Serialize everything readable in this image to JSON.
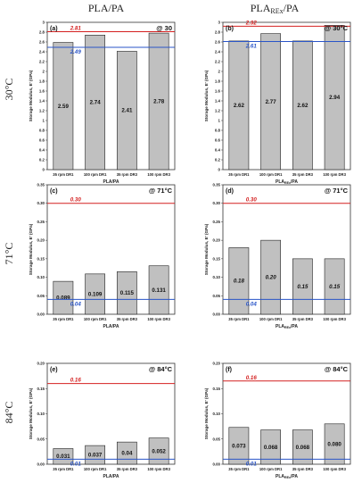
{
  "headers": {
    "columns": [
      "PLA/PA",
      "PLA_REx/PA"
    ],
    "rows": [
      "30°C",
      "71°C",
      "84°C"
    ]
  },
  "chart_data": [
    {
      "type": "bar",
      "panel": "(a)",
      "temperature": "@ 30",
      "categories": [
        "35 rpm DR1",
        "100 rpm DR1",
        "35 rpm DR3",
        "100 rpm DR3"
      ],
      "values": [
        2.59,
        2.74,
        2.41,
        2.78
      ],
      "value_labels": [
        "2.59",
        "2.74",
        "2.41",
        "2.78"
      ],
      "ref_lines": [
        {
          "value": 2.81,
          "label": "2.81",
          "color": "#d42020"
        },
        {
          "value": 2.49,
          "label": "2.49",
          "color": "#2a55c8"
        }
      ],
      "ylim": [
        0,
        3.0
      ],
      "yticks": [
        "0",
        "0.2",
        "0.4",
        "0.6",
        "0.8",
        "1",
        "1.2",
        "1.4",
        "1.6",
        "1.8",
        "2",
        "2.2",
        "2.4",
        "2.6",
        "2.8",
        "3"
      ],
      "xlabel": "PLA/PA",
      "ylabel": "Storage Modulus, E' (GPa)",
      "value_style": "normal"
    },
    {
      "type": "bar",
      "panel": "(b)",
      "temperature": "@ 30°C",
      "categories": [
        "35 rpm DR1",
        "100 rpm DR1",
        "35 rpm DR3",
        "100 rpm DR3"
      ],
      "values": [
        2.62,
        2.77,
        2.62,
        2.94
      ],
      "value_labels": [
        "2.62",
        "2.77",
        "2.62",
        "2.94"
      ],
      "ref_lines": [
        {
          "value": 2.92,
          "label": "2.92",
          "color": "#d42020"
        },
        {
          "value": 2.61,
          "label": "2.61",
          "color": "#2a55c8"
        }
      ],
      "ylim": [
        0,
        3.0
      ],
      "yticks": [
        "0",
        "0.2",
        "0.4",
        "0.6",
        "0.8",
        "1",
        "1.2",
        "1.4",
        "1.6",
        "1.8",
        "2",
        "2.2",
        "2.4",
        "2.6",
        "2.8",
        "3"
      ],
      "xlabel": "PLAREx/PA",
      "ylabel": "Storage Modulus, E' (GPa)",
      "value_style": "normal"
    },
    {
      "type": "bar",
      "panel": "(c)",
      "temperature": "@ 71°C",
      "categories": [
        "35 rpm DR1",
        "100 rpm DR1",
        "35 rpm DR3",
        "100 rpm DR3"
      ],
      "values": [
        0.089,
        0.109,
        0.115,
        0.131
      ],
      "value_labels": [
        "0.089",
        "0.109",
        "0.115",
        "0.131"
      ],
      "ref_lines": [
        {
          "value": 0.3,
          "label": "0.30",
          "color": "#d42020"
        },
        {
          "value": 0.04,
          "label": "0.04",
          "color": "#2a55c8"
        }
      ],
      "ylim": [
        0,
        0.35
      ],
      "yticks": [
        "0.00",
        "0.05",
        "0.10",
        "0.15",
        "0.20",
        "0.25",
        "0.30",
        "0.35"
      ],
      "xlabel": "PLA/PA",
      "ylabel": "Storage Modulus, E' (GPa)",
      "value_style": "normal"
    },
    {
      "type": "bar",
      "panel": "(d)",
      "temperature": "@ 71°C",
      "categories": [
        "35 rpm DR1",
        "100 rpm DR1",
        "35 rpm DR3",
        "100 rpm DR3"
      ],
      "values": [
        0.18,
        0.2,
        0.15,
        0.15
      ],
      "value_labels": [
        "0.18",
        "0.20",
        "0.15",
        "0.15"
      ],
      "ref_lines": [
        {
          "value": 0.3,
          "label": "0.30",
          "color": "#d42020"
        },
        {
          "value": 0.04,
          "label": "0.04",
          "color": "#2a55c8"
        }
      ],
      "ylim": [
        0,
        0.35
      ],
      "yticks": [
        "0.00",
        "0.05",
        "0.10",
        "0.15",
        "0.20",
        "0.25",
        "0.30",
        "0.35"
      ],
      "xlabel": "PLAREx/PA",
      "ylabel": "Storage Modulus, E' (GPa)",
      "value_style": "italic"
    },
    {
      "type": "bar",
      "panel": "(e)",
      "temperature": "@ 84°C",
      "categories": [
        "35 rpm DR1",
        "100 rpm DR1",
        "35 rpm DR3",
        "100 rpm DR3"
      ],
      "values": [
        0.031,
        0.037,
        0.044,
        0.052
      ],
      "value_labels": [
        "0.031",
        "0.037",
        "0.04",
        "0.052"
      ],
      "ref_lines": [
        {
          "value": 0.16,
          "label": "0.16",
          "color": "#d42020"
        },
        {
          "value": 0.01,
          "label": "0.01",
          "color": "#2a55c8"
        }
      ],
      "ylim": [
        0,
        0.2
      ],
      "yticks": [
        "0.00",
        "0.05",
        "0.10",
        "0.15",
        "0.20"
      ],
      "xlabel": "PLA/PA",
      "ylabel": "Storage Modulus, E' (GPa)",
      "value_style": "normal"
    },
    {
      "type": "bar",
      "panel": "(f)",
      "temperature": "@ 84°C",
      "categories": [
        "35 rpm DR1",
        "100 rpm DR1",
        "35 rpm DR3",
        "100 rpm DR3"
      ],
      "values": [
        0.073,
        0.068,
        0.068,
        0.08
      ],
      "value_labels": [
        "0.073",
        "0.068",
        "0.068",
        "0.080"
      ],
      "ref_lines": [
        {
          "value": 0.165,
          "label": "0.16",
          "color": "#d42020"
        },
        {
          "value": 0.01,
          "label": "0.01",
          "color": "#2a55c8"
        }
      ],
      "ylim": [
        0,
        0.2
      ],
      "yticks": [
        "0.00",
        "0.05",
        "0.10",
        "0.15",
        "0.20"
      ],
      "xlabel": "PLAREx/PA",
      "ylabel": "Storage Modulus, E' (GPa)",
      "value_style": "normal"
    }
  ]
}
